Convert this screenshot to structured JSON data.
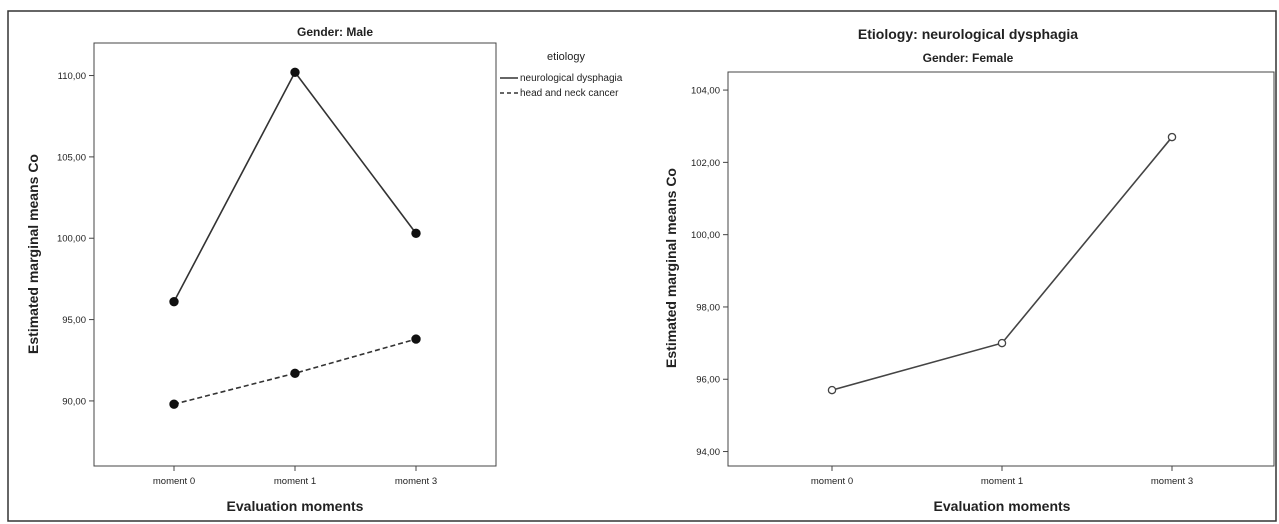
{
  "chart_data": [
    {
      "type": "line",
      "title": "Gender: Male",
      "xlabel": "Evaluation moments",
      "ylabel": "Estimated marginal means Co",
      "categories": [
        "moment 0",
        "moment 1",
        "moment 3"
      ],
      "ylim": [
        86.0,
        112.0
      ],
      "yticks": [
        90,
        95,
        100,
        105,
        110
      ],
      "ytick_labels": [
        "90,00",
        "95,00",
        "100,00",
        "105,00",
        "110,00"
      ],
      "legend": {
        "title": "etiology",
        "position": "right"
      },
      "series": [
        {
          "name": "neurological dysphagia",
          "values": [
            96.1,
            110.2,
            100.3
          ],
          "style": "solid",
          "marker": "filled-circle",
          "color": "#333333"
        },
        {
          "name": "head and neck cancer",
          "values": [
            89.8,
            91.7,
            93.8
          ],
          "style": "dashed",
          "marker": "filled-circle",
          "color": "#333333"
        }
      ],
      "grid": false
    },
    {
      "type": "line",
      "suptitle": "Etiology: neurological dysphagia",
      "title": "Gender: Female",
      "xlabel": "Evaluation moments",
      "ylabel": "Estimated marginal means Co",
      "categories": [
        "moment 0",
        "moment 1",
        "moment 3"
      ],
      "ylim": [
        93.6,
        104.5
      ],
      "yticks": [
        94,
        96,
        98,
        100,
        102,
        104
      ],
      "ytick_labels": [
        "94,00",
        "96,00",
        "98,00",
        "100,00",
        "102,00",
        "104,00"
      ],
      "series": [
        {
          "values": [
            95.7,
            97.0,
            102.7
          ],
          "style": "solid",
          "marker": "open-circle",
          "color": "#444444"
        }
      ],
      "grid": false
    }
  ]
}
